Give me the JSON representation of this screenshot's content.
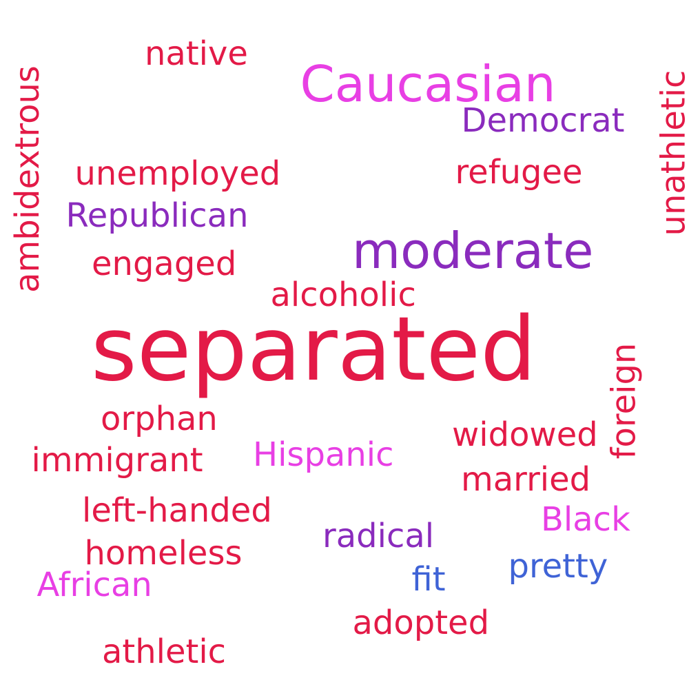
{
  "colors": {
    "crimson": "#e31a47",
    "magenta": "#e83fe4",
    "purple": "#8a2bbd",
    "blue": "#3f63d6"
  },
  "words": [
    {
      "key": "separated",
      "text": "separated",
      "color": "crimson",
      "weight": 10
    },
    {
      "key": "moderate",
      "text": "moderate",
      "color": "purple",
      "weight": 6
    },
    {
      "key": "caucasian",
      "text": "Caucasian",
      "color": "magenta",
      "weight": 6
    },
    {
      "key": "native",
      "text": "native",
      "color": "crimson",
      "weight": 4
    },
    {
      "key": "democrat",
      "text": "Democrat",
      "color": "purple",
      "weight": 4
    },
    {
      "key": "unathletic",
      "text": "unathletic",
      "color": "crimson",
      "weight": 4
    },
    {
      "key": "ambidextrous",
      "text": "ambidextrous",
      "color": "crimson",
      "weight": 4
    },
    {
      "key": "unemployed",
      "text": "unemployed",
      "color": "crimson",
      "weight": 4
    },
    {
      "key": "refugee",
      "text": "refugee",
      "color": "crimson",
      "weight": 4
    },
    {
      "key": "republican",
      "text": "Republican",
      "color": "purple",
      "weight": 4
    },
    {
      "key": "engaged",
      "text": "engaged",
      "color": "crimson",
      "weight": 4
    },
    {
      "key": "alcoholic",
      "text": "alcoholic",
      "color": "crimson",
      "weight": 4
    },
    {
      "key": "foreign",
      "text": "foreign",
      "color": "crimson",
      "weight": 4
    },
    {
      "key": "orphan",
      "text": "orphan",
      "color": "crimson",
      "weight": 4
    },
    {
      "key": "widowed",
      "text": "widowed",
      "color": "crimson",
      "weight": 4
    },
    {
      "key": "immigrant",
      "text": "immigrant",
      "color": "crimson",
      "weight": 4
    },
    {
      "key": "hispanic",
      "text": "Hispanic",
      "color": "magenta",
      "weight": 4
    },
    {
      "key": "married",
      "text": "married",
      "color": "crimson",
      "weight": 4
    },
    {
      "key": "left_handed",
      "text": "left-handed",
      "color": "crimson",
      "weight": 4
    },
    {
      "key": "black",
      "text": "Black",
      "color": "magenta",
      "weight": 4
    },
    {
      "key": "radical",
      "text": "radical",
      "color": "purple",
      "weight": 4
    },
    {
      "key": "homeless",
      "text": "homeless",
      "color": "crimson",
      "weight": 4
    },
    {
      "key": "pretty",
      "text": "pretty",
      "color": "blue",
      "weight": 4
    },
    {
      "key": "fit",
      "text": "fit",
      "color": "blue",
      "weight": 4
    },
    {
      "key": "african",
      "text": "African",
      "color": "magenta",
      "weight": 4
    },
    {
      "key": "adopted",
      "text": "adopted",
      "color": "crimson",
      "weight": 4
    },
    {
      "key": "athletic",
      "text": "athletic",
      "color": "crimson",
      "weight": 4
    }
  ]
}
